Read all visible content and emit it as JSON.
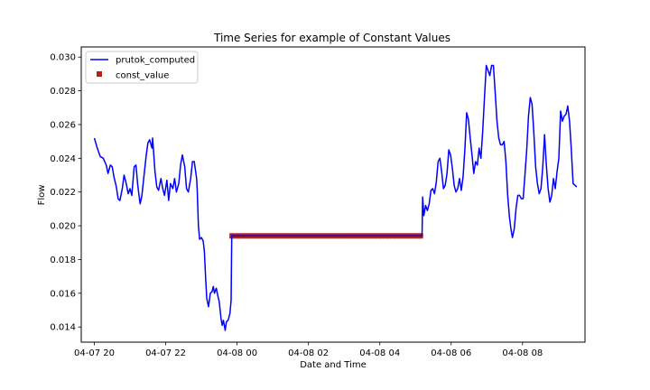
{
  "chart_data": {
    "type": "line",
    "title": "Time Series for example of Constant Values",
    "xlabel": "Date and Time",
    "ylabel": "Flow",
    "x_axis_kind": "datetime",
    "xlim": [
      "2023-04-07T19:38",
      "2023-04-08T09:45"
    ],
    "ylim": [
      0.0131,
      0.0306
    ],
    "x_ticks": [
      {
        "t": "2023-04-07T20:00",
        "label": "04-07 20"
      },
      {
        "t": "2023-04-07T22:00",
        "label": "04-07 22"
      },
      {
        "t": "2023-04-08T00:00",
        "label": "04-08 00"
      },
      {
        "t": "2023-04-08T02:00",
        "label": "04-08 02"
      },
      {
        "t": "2023-04-08T04:00",
        "label": "04-08 04"
      },
      {
        "t": "2023-04-08T06:00",
        "label": "04-08 06"
      },
      {
        "t": "2023-04-08T08:00",
        "label": "04-08 08"
      }
    ],
    "y_ticks": [
      {
        "v": 0.014,
        "label": "0.014"
      },
      {
        "v": 0.016,
        "label": "0.016"
      },
      {
        "v": 0.018,
        "label": "0.018"
      },
      {
        "v": 0.02,
        "label": "0.020"
      },
      {
        "v": 0.022,
        "label": "0.022"
      },
      {
        "v": 0.024,
        "label": "0.024"
      },
      {
        "v": 0.026,
        "label": "0.026"
      },
      {
        "v": 0.028,
        "label": "0.028"
      },
      {
        "v": 0.03,
        "label": "0.030"
      }
    ],
    "grid": false,
    "legend_position": "top-left",
    "series": [
      {
        "name": "prutok_computed",
        "kind": "line",
        "color": "#0000ff",
        "points": [
          [
            "2023-04-07T20:00",
            0.0252
          ],
          [
            "2023-04-07T20:05",
            0.0246
          ],
          [
            "2023-04-07T20:10",
            0.0241
          ],
          [
            "2023-04-07T20:15",
            0.024
          ],
          [
            "2023-04-07T20:20",
            0.0236
          ],
          [
            "2023-04-07T20:23",
            0.0231
          ],
          [
            "2023-04-07T20:27",
            0.0236
          ],
          [
            "2023-04-07T20:30",
            0.0235
          ],
          [
            "2023-04-07T20:33",
            0.0229
          ],
          [
            "2023-04-07T20:37",
            0.0223
          ],
          [
            "2023-04-07T20:40",
            0.0216
          ],
          [
            "2023-04-07T20:43",
            0.0215
          ],
          [
            "2023-04-07T20:47",
            0.0222
          ],
          [
            "2023-04-07T20:50",
            0.023
          ],
          [
            "2023-04-07T20:53",
            0.0226
          ],
          [
            "2023-04-07T20:57",
            0.0219
          ],
          [
            "2023-04-07T21:00",
            0.0222
          ],
          [
            "2023-04-07T21:03",
            0.0218
          ],
          [
            "2023-04-07T21:07",
            0.0235
          ],
          [
            "2023-04-07T21:10",
            0.0236
          ],
          [
            "2023-04-07T21:13",
            0.0224
          ],
          [
            "2023-04-07T21:17",
            0.0213
          ],
          [
            "2023-04-07T21:20",
            0.0218
          ],
          [
            "2023-04-07T21:23",
            0.0228
          ],
          [
            "2023-04-07T21:27",
            0.0241
          ],
          [
            "2023-04-07T21:30",
            0.0249
          ],
          [
            "2023-04-07T21:33",
            0.0251
          ],
          [
            "2023-04-07T21:37",
            0.0246
          ],
          [
            "2023-04-07T21:38",
            0.0252
          ],
          [
            "2023-04-07T21:42",
            0.0232
          ],
          [
            "2023-04-07T21:45",
            0.0223
          ],
          [
            "2023-04-07T21:48",
            0.0221
          ],
          [
            "2023-04-07T21:52",
            0.0228
          ],
          [
            "2023-04-07T21:55",
            0.0222
          ],
          [
            "2023-04-07T21:58",
            0.0218
          ],
          [
            "2023-04-07T22:02",
            0.0227
          ],
          [
            "2023-04-07T22:05",
            0.0215
          ],
          [
            "2023-04-07T22:08",
            0.0225
          ],
          [
            "2023-04-07T22:12",
            0.0222
          ],
          [
            "2023-04-07T22:15",
            0.0228
          ],
          [
            "2023-04-07T22:18",
            0.022
          ],
          [
            "2023-04-07T22:22",
            0.0225
          ],
          [
            "2023-04-07T22:25",
            0.0236
          ],
          [
            "2023-04-07T22:28",
            0.0242
          ],
          [
            "2023-04-07T22:32",
            0.0235
          ],
          [
            "2023-04-07T22:35",
            0.0222
          ],
          [
            "2023-04-07T22:38",
            0.022
          ],
          [
            "2023-04-07T22:42",
            0.0228
          ],
          [
            "2023-04-07T22:45",
            0.0238
          ],
          [
            "2023-04-07T22:48",
            0.0238
          ],
          [
            "2023-04-07T22:52",
            0.0228
          ],
          [
            "2023-04-07T22:53",
            0.0221
          ],
          [
            "2023-04-07T22:55",
            0.02
          ],
          [
            "2023-04-07T22:57",
            0.0192
          ],
          [
            "2023-04-07T23:00",
            0.0193
          ],
          [
            "2023-04-07T23:03",
            0.0191
          ],
          [
            "2023-04-07T23:05",
            0.0185
          ],
          [
            "2023-04-07T23:07",
            0.017
          ],
          [
            "2023-04-07T23:09",
            0.0157
          ],
          [
            "2023-04-07T23:12",
            0.0152
          ],
          [
            "2023-04-07T23:15",
            0.016
          ],
          [
            "2023-04-07T23:18",
            0.0161
          ],
          [
            "2023-04-07T23:20",
            0.0164
          ],
          [
            "2023-04-07T23:22",
            0.016
          ],
          [
            "2023-04-07T23:25",
            0.0163
          ],
          [
            "2023-04-07T23:28",
            0.0158
          ],
          [
            "2023-04-07T23:30",
            0.0155
          ],
          [
            "2023-04-07T23:33",
            0.0145
          ],
          [
            "2023-04-07T23:35",
            0.0141
          ],
          [
            "2023-04-07T23:37",
            0.0144
          ],
          [
            "2023-04-07T23:40",
            0.0138
          ],
          [
            "2023-04-07T23:42",
            0.0143
          ],
          [
            "2023-04-07T23:45",
            0.0144
          ],
          [
            "2023-04-07T23:48",
            0.0148
          ],
          [
            "2023-04-07T23:50",
            0.0156
          ],
          [
            "2023-04-07T23:51",
            0.0194
          ],
          [
            "2023-04-08T05:11",
            0.0194
          ],
          [
            "2023-04-08T05:12",
            0.0217
          ],
          [
            "2023-04-08T05:14",
            0.0206
          ],
          [
            "2023-04-08T05:17",
            0.0212
          ],
          [
            "2023-04-08T05:20",
            0.0209
          ],
          [
            "2023-04-08T05:23",
            0.0213
          ],
          [
            "2023-04-08T05:26",
            0.0221
          ],
          [
            "2023-04-08T05:29",
            0.0222
          ],
          [
            "2023-04-08T05:32",
            0.0219
          ],
          [
            "2023-04-08T05:35",
            0.0226
          ],
          [
            "2023-04-08T05:38",
            0.0238
          ],
          [
            "2023-04-08T05:41",
            0.024
          ],
          [
            "2023-04-08T05:44",
            0.0232
          ],
          [
            "2023-04-08T05:47",
            0.0222
          ],
          [
            "2023-04-08T05:50",
            0.0224
          ],
          [
            "2023-04-08T05:53",
            0.0231
          ],
          [
            "2023-04-08T05:56",
            0.0245
          ],
          [
            "2023-04-08T05:59",
            0.0242
          ],
          [
            "2023-04-08T06:02",
            0.0234
          ],
          [
            "2023-04-08T06:05",
            0.0224
          ],
          [
            "2023-04-08T06:08",
            0.022
          ],
          [
            "2023-04-08T06:11",
            0.0222
          ],
          [
            "2023-04-08T06:14",
            0.0228
          ],
          [
            "2023-04-08T06:17",
            0.0221
          ],
          [
            "2023-04-08T06:20",
            0.0229
          ],
          [
            "2023-04-08T06:23",
            0.0245
          ],
          [
            "2023-04-08T06:26",
            0.0267
          ],
          [
            "2023-04-08T06:29",
            0.0263
          ],
          [
            "2023-04-08T06:32",
            0.0252
          ],
          [
            "2023-04-08T06:35",
            0.0242
          ],
          [
            "2023-04-08T06:38",
            0.0231
          ],
          [
            "2023-04-08T06:41",
            0.0238
          ],
          [
            "2023-04-08T06:44",
            0.0236
          ],
          [
            "2023-04-08T06:47",
            0.0246
          ],
          [
            "2023-04-08T06:50",
            0.024
          ],
          [
            "2023-04-08T06:53",
            0.0256
          ],
          [
            "2023-04-08T06:56",
            0.0276
          ],
          [
            "2023-04-08T06:59",
            0.0295
          ],
          [
            "2023-04-08T07:02",
            0.0292
          ],
          [
            "2023-04-08T07:05",
            0.0289
          ],
          [
            "2023-04-08T07:08",
            0.0295
          ],
          [
            "2023-04-08T07:11",
            0.0295
          ],
          [
            "2023-04-08T07:14",
            0.0279
          ],
          [
            "2023-04-08T07:17",
            0.0262
          ],
          [
            "2023-04-08T07:20",
            0.0252
          ],
          [
            "2023-04-08T07:23",
            0.0248
          ],
          [
            "2023-04-08T07:26",
            0.0248
          ],
          [
            "2023-04-08T07:29",
            0.025
          ],
          [
            "2023-04-08T07:32",
            0.0238
          ],
          [
            "2023-04-08T07:35",
            0.0218
          ],
          [
            "2023-04-08T07:38",
            0.0205
          ],
          [
            "2023-04-08T07:41",
            0.0197
          ],
          [
            "2023-04-08T07:43",
            0.0193
          ],
          [
            "2023-04-08T07:46",
            0.0198
          ],
          [
            "2023-04-08T07:49",
            0.021
          ],
          [
            "2023-04-08T07:52",
            0.0218
          ],
          [
            "2023-04-08T07:55",
            0.0218
          ],
          [
            "2023-04-08T07:58",
            0.0216
          ],
          [
            "2023-04-08T08:01",
            0.0216
          ],
          [
            "2023-04-08T08:04",
            0.023
          ],
          [
            "2023-04-08T08:07",
            0.0245
          ],
          [
            "2023-04-08T08:10",
            0.0265
          ],
          [
            "2023-04-08T08:13",
            0.0276
          ],
          [
            "2023-04-08T08:16",
            0.0272
          ],
          [
            "2023-04-08T08:19",
            0.0255
          ],
          [
            "2023-04-08T08:22",
            0.0235
          ],
          [
            "2023-04-08T08:25",
            0.0225
          ],
          [
            "2023-04-08T08:28",
            0.0219
          ],
          [
            "2023-04-08T08:31",
            0.0222
          ],
          [
            "2023-04-08T08:34",
            0.0235
          ],
          [
            "2023-04-08T08:37",
            0.0254
          ],
          [
            "2023-04-08T08:40",
            0.0236
          ],
          [
            "2023-04-08T08:43",
            0.0222
          ],
          [
            "2023-04-08T08:46",
            0.0214
          ],
          [
            "2023-04-08T08:49",
            0.0218
          ],
          [
            "2023-04-08T08:52",
            0.0228
          ],
          [
            "2023-04-08T08:55",
            0.0222
          ],
          [
            "2023-04-08T08:58",
            0.0232
          ],
          [
            "2023-04-08T09:01",
            0.024
          ],
          [
            "2023-04-08T09:04",
            0.0268
          ],
          [
            "2023-04-08T09:07",
            0.0262
          ],
          [
            "2023-04-08T09:10",
            0.0265
          ],
          [
            "2023-04-08T09:13",
            0.0266
          ],
          [
            "2023-04-08T09:16",
            0.0271
          ],
          [
            "2023-04-08T09:19",
            0.0262
          ],
          [
            "2023-04-08T09:22",
            0.0245
          ],
          [
            "2023-04-08T09:25",
            0.0225
          ],
          [
            "2023-04-08T09:28",
            0.0224
          ],
          [
            "2023-04-08T09:31",
            0.0223
          ]
        ]
      },
      {
        "name": "const_value",
        "kind": "marker_run",
        "color": "#b22222",
        "marker": "square",
        "x_start": "2023-04-07T23:51",
        "x_end": "2023-04-08T05:11",
        "value": 0.0194
      }
    ]
  }
}
